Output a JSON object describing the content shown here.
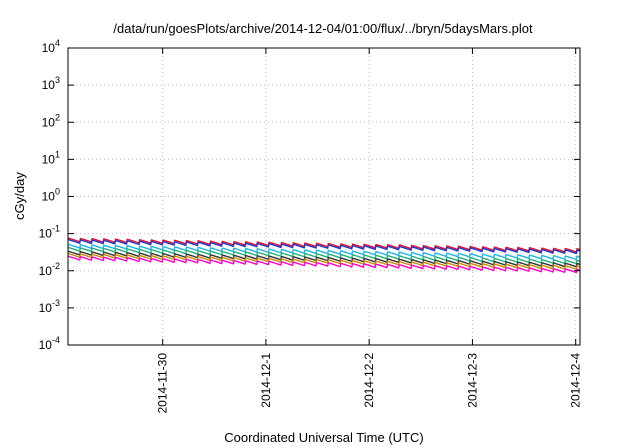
{
  "chart_data": {
    "type": "line",
    "title": "/data/run/goesPlots/archive/2014-12-04/01:00/flux/../bryn/5daysMars.plot",
    "xlabel": "Coordinated Universal Time (UTC)",
    "ylabel": "cGy/day",
    "yscale": "log",
    "ylim": [
      0.0001,
      10000
    ],
    "xlim": [
      "2014-11-29T02:00",
      "2014-12-04T01:00"
    ],
    "x_ticks": [
      "2014-11-30",
      "2014-12-1",
      "2014-12-2",
      "2014-12-3",
      "2014-12-4"
    ],
    "y_ticks": [
      {
        "base": "10",
        "exp": "-4",
        "value": 0.0001
      },
      {
        "base": "10",
        "exp": "-3",
        "value": 0.001
      },
      {
        "base": "10",
        "exp": "-2",
        "value": 0.01
      },
      {
        "base": "10",
        "exp": "-1",
        "value": 0.1
      },
      {
        "base": "10",
        "exp": "0",
        "value": 1
      },
      {
        "base": "10",
        "exp": "1",
        "value": 10
      },
      {
        "base": "10",
        "exp": "2",
        "value": 100
      },
      {
        "base": "10",
        "exp": "3",
        "value": 1000
      },
      {
        "base": "10",
        "exp": "4",
        "value": 10000
      }
    ],
    "grid": true,
    "sawtooth_period_hours": 2.75,
    "series": [
      {
        "color": "#e8102a",
        "start": 0.068,
        "end": 0.035
      },
      {
        "color": "#2233cc",
        "start": 0.062,
        "end": 0.032
      },
      {
        "color": "#1fb3e6",
        "start": 0.046,
        "end": 0.022
      },
      {
        "color": "#20b27a",
        "start": 0.038,
        "end": 0.017
      },
      {
        "color": "#333333",
        "start": 0.03,
        "end": 0.014
      },
      {
        "color": "#c98a00",
        "start": 0.026,
        "end": 0.012
      },
      {
        "color": "#ff00cc",
        "start": 0.022,
        "end": 0.0098
      }
    ]
  }
}
